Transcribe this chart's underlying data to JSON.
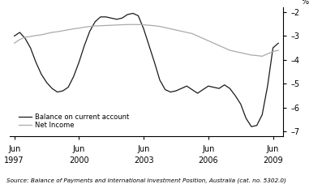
{
  "title": "",
  "ylabel": "%",
  "source": "Source: Balance of Payments and International Investment Position, Australia (cat. no. 5302.0)",
  "ylim": [
    -7.2,
    -1.8
  ],
  "yticks": [
    -7,
    -6,
    -5,
    -4,
    -3,
    -2
  ],
  "ytick_labels": [
    "–7",
    "–6",
    "–5",
    "–4",
    "–3",
    "–2"
  ],
  "xlim_start": 1997.2,
  "xlim_end": 2009.9,
  "xtick_positions": [
    1997.417,
    2000.417,
    2003.417,
    2006.417,
    2009.417
  ],
  "xtick_labels_top": [
    "Jun",
    "Jun",
    "Jun",
    "Jun",
    "Jun"
  ],
  "xtick_labels_bottom": [
    "1997",
    "2000",
    "2003",
    "2006",
    "2009"
  ],
  "legend_labels": [
    "Balance on current account",
    "Net Income"
  ],
  "line_colors": [
    "#1a1a1a",
    "#aaaaaa"
  ],
  "background_color": "#ffffff",
  "balance_x": [
    1997.417,
    1997.667,
    1997.917,
    1998.167,
    1998.417,
    1998.667,
    1998.917,
    1999.167,
    1999.417,
    1999.667,
    1999.917,
    2000.167,
    2000.417,
    2000.667,
    2000.917,
    2001.167,
    2001.417,
    2001.667,
    2001.917,
    2002.167,
    2002.417,
    2002.667,
    2002.917,
    2003.167,
    2003.417,
    2003.667,
    2003.917,
    2004.167,
    2004.417,
    2004.667,
    2004.917,
    2005.167,
    2005.417,
    2005.667,
    2005.917,
    2006.167,
    2006.417,
    2006.667,
    2006.917,
    2007.167,
    2007.417,
    2007.667,
    2007.917,
    2008.167,
    2008.417,
    2008.667,
    2008.917,
    2009.167,
    2009.417,
    2009.667
  ],
  "balance_y": [
    -3.0,
    -2.85,
    -3.1,
    -3.5,
    -4.1,
    -4.6,
    -4.95,
    -5.2,
    -5.35,
    -5.3,
    -5.15,
    -4.7,
    -4.1,
    -3.4,
    -2.8,
    -2.4,
    -2.2,
    -2.2,
    -2.25,
    -2.3,
    -2.25,
    -2.1,
    -2.05,
    -2.15,
    -2.7,
    -3.4,
    -4.1,
    -4.85,
    -5.25,
    -5.35,
    -5.3,
    -5.2,
    -5.1,
    -5.25,
    -5.4,
    -5.25,
    -5.1,
    -5.15,
    -5.2,
    -5.05,
    -5.2,
    -5.5,
    -5.85,
    -6.45,
    -6.8,
    -6.75,
    -6.3,
    -5.1,
    -3.5,
    -3.3
  ],
  "netincome_x": [
    1997.417,
    1997.667,
    1997.917,
    1998.167,
    1998.417,
    1998.667,
    1998.917,
    1999.167,
    1999.417,
    1999.667,
    1999.917,
    2000.167,
    2000.417,
    2000.667,
    2000.917,
    2001.167,
    2001.417,
    2001.667,
    2001.917,
    2002.167,
    2002.417,
    2002.667,
    2002.917,
    2003.167,
    2003.417,
    2003.667,
    2003.917,
    2004.167,
    2004.417,
    2004.667,
    2004.917,
    2005.167,
    2005.417,
    2005.667,
    2005.917,
    2006.167,
    2006.417,
    2006.667,
    2006.917,
    2007.167,
    2007.417,
    2007.667,
    2007.917,
    2008.167,
    2008.417,
    2008.667,
    2008.917,
    2009.167,
    2009.417,
    2009.667
  ],
  "netincome_y": [
    -3.3,
    -3.15,
    -3.05,
    -3.02,
    -2.98,
    -2.95,
    -2.9,
    -2.85,
    -2.82,
    -2.78,
    -2.74,
    -2.7,
    -2.67,
    -2.63,
    -2.6,
    -2.58,
    -2.57,
    -2.56,
    -2.55,
    -2.54,
    -2.53,
    -2.52,
    -2.52,
    -2.52,
    -2.53,
    -2.55,
    -2.57,
    -2.6,
    -2.65,
    -2.7,
    -2.75,
    -2.8,
    -2.85,
    -2.9,
    -3.0,
    -3.1,
    -3.2,
    -3.3,
    -3.4,
    -3.5,
    -3.6,
    -3.65,
    -3.7,
    -3.75,
    -3.8,
    -3.82,
    -3.85,
    -3.75,
    -3.65,
    -3.6
  ]
}
